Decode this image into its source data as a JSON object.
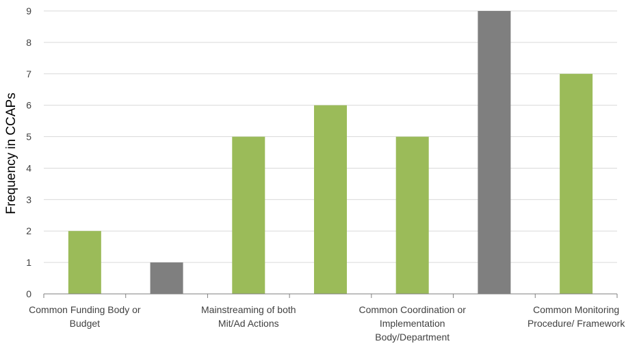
{
  "chart_data": {
    "type": "bar",
    "ylabel": "Frequency in CCAPs",
    "xlabel": "",
    "ylim": [
      0,
      9
    ],
    "yticks": [
      0,
      1,
      2,
      3,
      4,
      5,
      6,
      7,
      8,
      9
    ],
    "grid": true,
    "legend": "none",
    "colors": {
      "green": "#9bbb59",
      "gray": "#7f7f7f",
      "grid": "#d9d9d9",
      "axis": "#7f7f7f"
    },
    "values": [
      2,
      1,
      5,
      6,
      5,
      9,
      7
    ],
    "bar_colors": [
      "green",
      "gray",
      "green",
      "green",
      "green",
      "gray",
      "green"
    ],
    "category_labels": [
      {
        "position": 0,
        "lines": [
          "Common Funding Body or",
          "Budget"
        ]
      },
      {
        "position": 2,
        "lines": [
          "Mainstreaming of both",
          "Mit/Ad Actions"
        ]
      },
      {
        "position": 4,
        "lines": [
          "Common Coordination or",
          "Implementation",
          "Body/Department"
        ]
      },
      {
        "position": 6,
        "lines": [
          "Common Monitoring",
          "Procedure/ Framework"
        ]
      }
    ]
  }
}
